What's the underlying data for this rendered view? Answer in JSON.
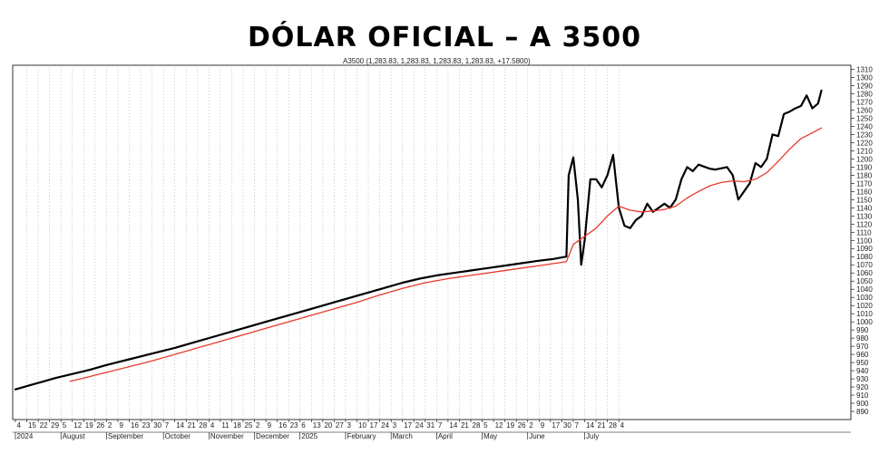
{
  "chart_data": {
    "type": "line",
    "title": "DÓLAR OFICIAL – A 3500",
    "legend_text": "A3500 (1,283.83, 1,283.83, 1,283.83, 1,283.83, +17.5800)",
    "y_axis_side": "right",
    "ylim": [
      880,
      1315
    ],
    "y_ticks": [
      890,
      900,
      910,
      920,
      930,
      940,
      950,
      960,
      970,
      980,
      990,
      1000,
      1010,
      1020,
      1030,
      1040,
      1050,
      1060,
      1070,
      1080,
      1090,
      1100,
      1110,
      1120,
      1130,
      1140,
      1150,
      1160,
      1170,
      1180,
      1190,
      1200,
      1210,
      1220,
      1230,
      1240,
      1250,
      1260,
      1270,
      1280,
      1290,
      1300,
      1310
    ],
    "grid": "vertical dotted",
    "day_ticks": [
      "4",
      "15",
      "22",
      "29",
      "5",
      "12",
      "19",
      "26",
      "2",
      "9",
      "16",
      "23",
      "30",
      "7",
      "14",
      "21",
      "28",
      "4",
      "11",
      "18",
      "25",
      "2",
      "9",
      "16",
      "23",
      "6",
      "13",
      "20",
      "27",
      "3",
      "10",
      "17",
      "24",
      "3",
      "17",
      "24",
      "31",
      "7",
      "14",
      "21",
      "28",
      "5",
      "12",
      "19",
      "26",
      "2",
      "9",
      "17",
      "30",
      "7",
      "14",
      "21",
      "28",
      "4"
    ],
    "month_labels": [
      "2024",
      "August",
      "September",
      "October",
      "November",
      "December",
      "2025",
      "February",
      "March",
      "April",
      "May",
      "June",
      "July"
    ],
    "series": [
      {
        "color": "#000000",
        "points": [
          [
            0,
            917
          ],
          [
            0.5,
            919
          ],
          [
            1.0,
            921
          ],
          [
            1.5,
            923
          ],
          [
            2.5,
            927
          ],
          [
            3.5,
            931
          ],
          [
            5.0,
            936
          ],
          [
            6.5,
            941
          ],
          [
            8.0,
            947
          ],
          [
            10.0,
            954
          ],
          [
            12.0,
            961
          ],
          [
            14.0,
            968
          ],
          [
            16.0,
            976
          ],
          [
            18.0,
            984
          ],
          [
            20.0,
            992
          ],
          [
            22.0,
            1000
          ],
          [
            24.0,
            1008
          ],
          [
            26.0,
            1016
          ],
          [
            28.0,
            1024
          ],
          [
            29.5,
            1030
          ],
          [
            31.0,
            1036
          ],
          [
            32.5,
            1042
          ],
          [
            34.0,
            1048
          ],
          [
            35.5,
            1053
          ],
          [
            37.0,
            1057
          ],
          [
            38.5,
            1060
          ],
          [
            40.0,
            1063
          ],
          [
            41.5,
            1066
          ],
          [
            43.0,
            1069
          ],
          [
            44.5,
            1072
          ],
          [
            46.0,
            1075
          ],
          [
            47.2,
            1077
          ],
          [
            48.0,
            1079
          ],
          [
            48.4,
            1080
          ],
          [
            48.6,
            1180
          ],
          [
            49.0,
            1202
          ],
          [
            49.4,
            1150
          ],
          [
            49.7,
            1070
          ],
          [
            50.0,
            1100
          ],
          [
            50.5,
            1175
          ],
          [
            51.0,
            1175
          ],
          [
            51.5,
            1165
          ],
          [
            52.0,
            1180
          ],
          [
            52.5,
            1205
          ],
          [
            53.0,
            1140
          ],
          [
            53.5,
            1118
          ],
          [
            54.0,
            1115
          ],
          [
            54.5,
            1125
          ],
          [
            55.0,
            1130
          ],
          [
            55.5,
            1145
          ],
          [
            56.0,
            1135
          ],
          [
            56.5,
            1140
          ],
          [
            57.0,
            1145
          ],
          [
            57.5,
            1140
          ],
          [
            58.0,
            1150
          ],
          [
            58.5,
            1175
          ],
          [
            59.0,
            1190
          ],
          [
            59.5,
            1185
          ],
          [
            60.0,
            1193
          ],
          [
            61.0,
            1188
          ],
          [
            61.5,
            1187
          ],
          [
            62.5,
            1190
          ],
          [
            63.0,
            1180
          ],
          [
            63.5,
            1150
          ],
          [
            64.0,
            1160
          ],
          [
            64.5,
            1170
          ],
          [
            65.0,
            1195
          ],
          [
            65.5,
            1190
          ],
          [
            66.0,
            1200
          ],
          [
            66.5,
            1230
          ],
          [
            67.0,
            1228
          ],
          [
            67.5,
            1255
          ],
          [
            68.0,
            1258
          ],
          [
            68.5,
            1262
          ],
          [
            69.0,
            1265
          ],
          [
            69.5,
            1278
          ],
          [
            70.0,
            1262
          ],
          [
            70.5,
            1268
          ],
          [
            70.8,
            1284
          ]
        ]
      },
      {
        "color": "#e8392b",
        "points": [
          [
            4.8,
            927
          ],
          [
            6.0,
            931
          ],
          [
            8.0,
            938
          ],
          [
            10.0,
            945
          ],
          [
            12.0,
            952
          ],
          [
            14.0,
            960
          ],
          [
            16.0,
            968
          ],
          [
            18.0,
            976
          ],
          [
            20.0,
            984
          ],
          [
            22.0,
            992
          ],
          [
            24.0,
            1000
          ],
          [
            26.0,
            1008
          ],
          [
            28.0,
            1016
          ],
          [
            30.0,
            1024
          ],
          [
            32.0,
            1033
          ],
          [
            34.0,
            1041
          ],
          [
            36.0,
            1048
          ],
          [
            38.0,
            1053
          ],
          [
            40.0,
            1057
          ],
          [
            42.0,
            1061
          ],
          [
            44.0,
            1065
          ],
          [
            46.0,
            1069
          ],
          [
            48.0,
            1073
          ],
          [
            48.4,
            1074
          ],
          [
            49.0,
            1095
          ],
          [
            50.0,
            1105
          ],
          [
            51.0,
            1115
          ],
          [
            52.0,
            1130
          ],
          [
            53.0,
            1142
          ],
          [
            54.0,
            1137
          ],
          [
            55.0,
            1135
          ],
          [
            56.0,
            1136
          ],
          [
            57.0,
            1138
          ],
          [
            58.0,
            1142
          ],
          [
            59.0,
            1152
          ],
          [
            60.0,
            1160
          ],
          [
            61.0,
            1167
          ],
          [
            62.0,
            1171
          ],
          [
            63.0,
            1173
          ],
          [
            64.0,
            1172
          ],
          [
            65.0,
            1175
          ],
          [
            66.0,
            1183
          ],
          [
            67.0,
            1197
          ],
          [
            68.0,
            1212
          ],
          [
            69.0,
            1225
          ],
          [
            70.0,
            1232
          ],
          [
            70.8,
            1238
          ]
        ]
      }
    ]
  }
}
